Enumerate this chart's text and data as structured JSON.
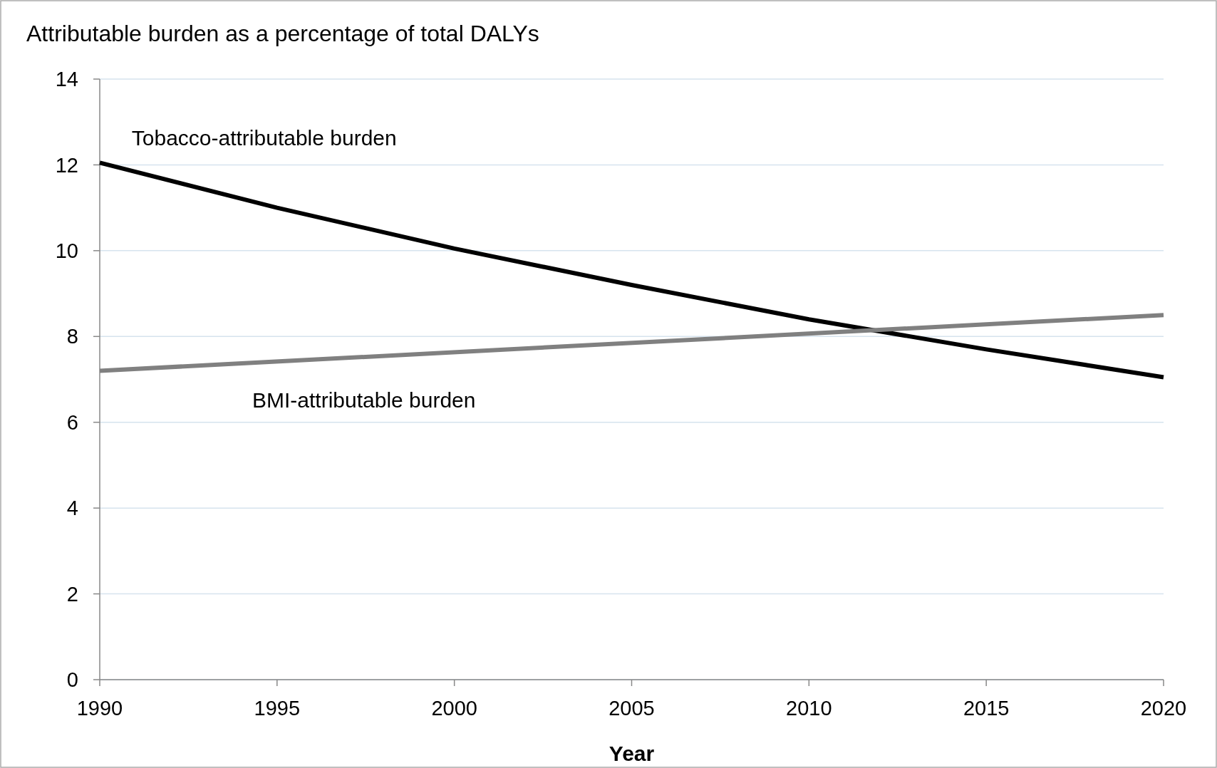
{
  "chart_data": {
    "type": "line",
    "title": "Attributable burden as a percentage of total DALYs",
    "xlabel": "Year",
    "x": [
      1990,
      2020
    ],
    "series": [
      {
        "name": "Tobacco-attributable burden",
        "color": "#000000",
        "x": [
          1990,
          1995,
          2000,
          2005,
          2010,
          2015,
          2020
        ],
        "values": [
          12.05,
          11.0,
          10.05,
          9.2,
          8.4,
          7.7,
          7.05
        ]
      },
      {
        "name": "BMI-attributable burden",
        "color": "#808080",
        "values": [
          7.2,
          8.5
        ]
      }
    ],
    "xlim": [
      1990,
      2020
    ],
    "xticks": [
      1990,
      1995,
      2000,
      2005,
      2010,
      2015,
      2020
    ],
    "ylim": [
      0,
      14
    ],
    "yticks": [
      0,
      2,
      4,
      6,
      8,
      10,
      12,
      14
    ],
    "grid": "y",
    "legend": false,
    "marker": "none",
    "line_style": "solid"
  }
}
